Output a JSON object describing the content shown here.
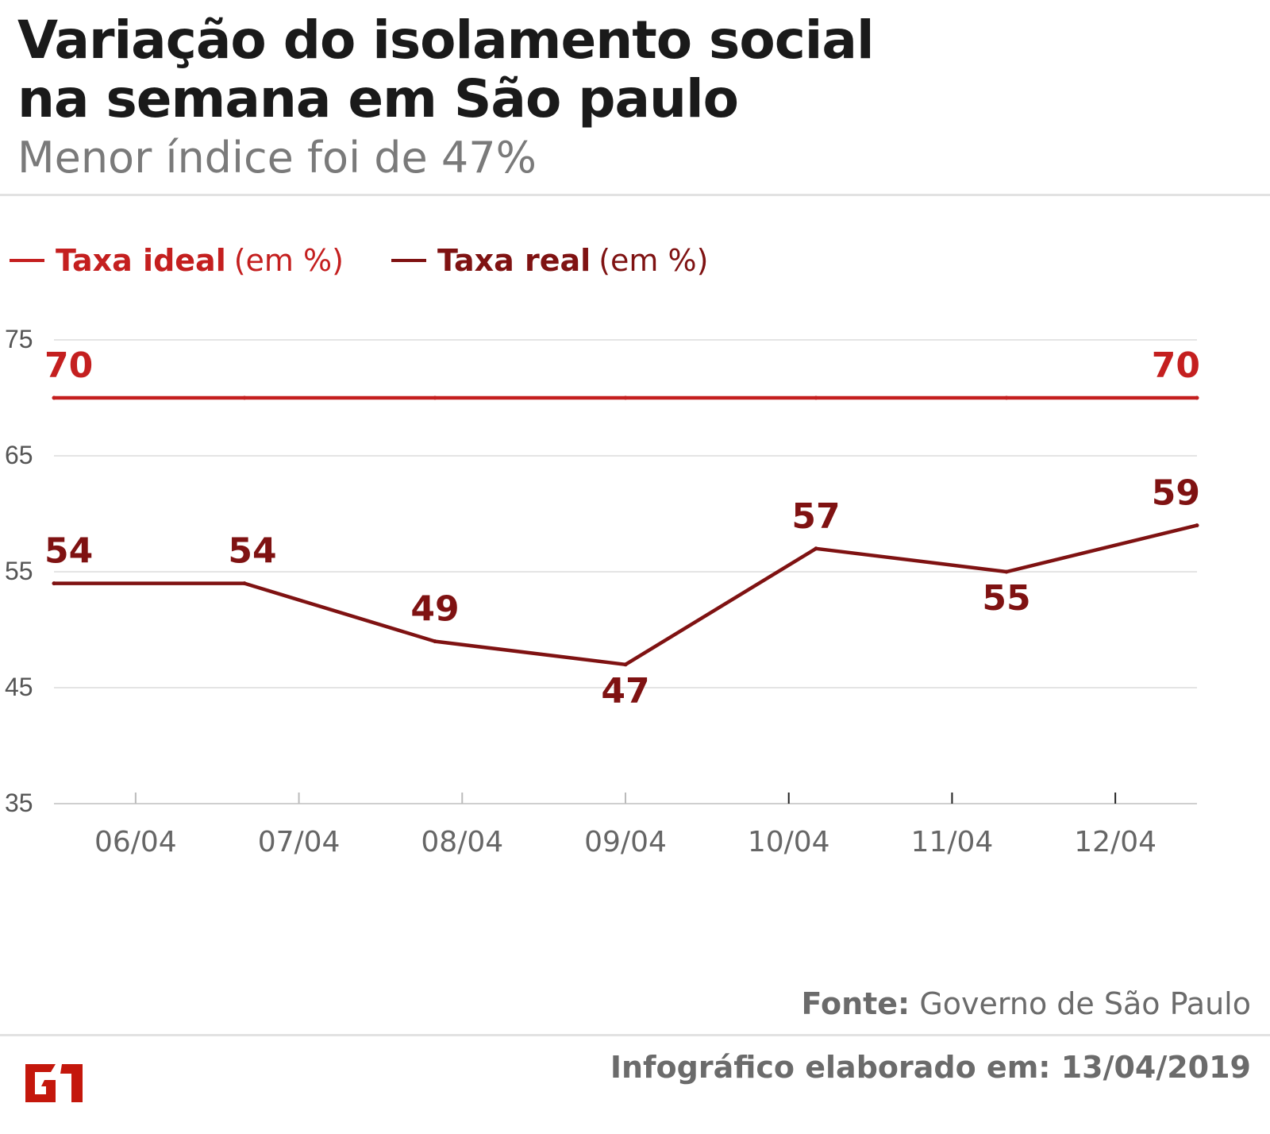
{
  "header": {
    "title_line1": "Variação do isolamento social",
    "title_line2": "na semana em São paulo",
    "subtitle": "Menor índice foi de 47%"
  },
  "legend": [
    {
      "name": "Taxa ideal",
      "unit": "(em %)",
      "color": "#c41f1f"
    },
    {
      "name": "Taxa real",
      "unit": "(em %)",
      "color": "#7f1212"
    }
  ],
  "chart_data": {
    "type": "line",
    "title": "Variação do isolamento social na semana em São paulo",
    "subtitle": "Menor índice foi de 47%",
    "categories": [
      "06/04",
      "07/04",
      "08/04",
      "09/04",
      "10/04",
      "11/04",
      "12/04"
    ],
    "series": [
      {
        "name": "Taxa ideal",
        "unit": "(em %)",
        "color": "#c41f1f",
        "values": [
          70,
          70,
          70,
          70,
          70,
          70,
          70
        ],
        "labeled_points": [
          0,
          6
        ]
      },
      {
        "name": "Taxa real",
        "unit": "(em %)",
        "color": "#7f1212",
        "values": [
          54,
          54,
          49,
          47,
          57,
          55,
          59
        ],
        "labeled_points": [
          0,
          1,
          2,
          3,
          4,
          5,
          6
        ]
      }
    ],
    "yticks": [
      35,
      45,
      55,
      65,
      75
    ],
    "ylim": [
      35,
      75
    ],
    "grid": true,
    "legend_position": "top-left",
    "xlabel": "",
    "ylabel": ""
  },
  "footer": {
    "source_label": "Fonte:",
    "source_value": "Governo de São Paulo",
    "credit": "Infográfico elaborado em: 13/04/2019",
    "logo_text": "G1",
    "logo_color": "#c4170c"
  }
}
